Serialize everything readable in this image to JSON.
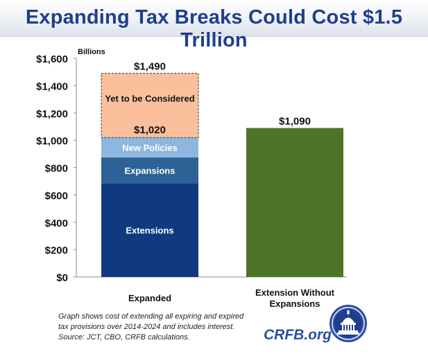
{
  "header": {
    "title": "Expanding Tax Breaks Could Cost $1.5 Trillion"
  },
  "chart_data": {
    "type": "bar",
    "stacked": true,
    "ylabel": "Billions",
    "ylim": [
      0,
      1600
    ],
    "yticks": [
      0,
      200,
      400,
      600,
      800,
      1000,
      1200,
      1400,
      1600
    ],
    "ytick_labels": [
      "$0",
      "$200",
      "$400",
      "$600",
      "$800",
      "$1,000",
      "$1,200",
      "$1,400",
      "$1,600"
    ],
    "categories": [
      "Expanded",
      "Extension Without Expansions"
    ],
    "series": [
      {
        "name": "Extensions",
        "color": "#0f3a80",
        "values": [
          685,
          1090
        ]
      },
      {
        "name": "Expansions",
        "color": "#2d6296",
        "values": [
          190,
          0
        ]
      },
      {
        "name": "New Policies",
        "color": "#8db7de",
        "values": [
          145,
          0
        ]
      },
      {
        "name": "Yet to be Considered",
        "color": "#fac09c",
        "values": [
          470,
          0
        ]
      }
    ],
    "single_bar_color": "#4e7428",
    "totals": [
      {
        "category": "Expanded",
        "label": "$1,490",
        "value": 1490
      },
      {
        "category": "Expanded",
        "label": "$1,020",
        "value": 1020
      },
      {
        "category": "Extension Without Expansions",
        "label": "$1,090",
        "value": 1090
      }
    ]
  },
  "footnote": {
    "lines": [
      "Graph shows cost of extending all expiring and expired",
      "tax provisions over 2014-2024 and includes interest.",
      "Source: JCT, CBO, CRFB calculations."
    ]
  },
  "brand": {
    "name": "CRFB.org"
  }
}
